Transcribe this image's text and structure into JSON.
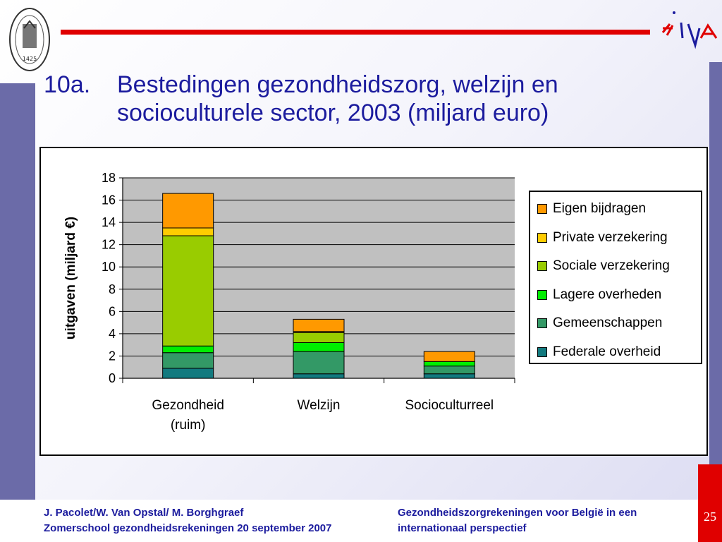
{
  "header": {
    "slide_number": "10a.",
    "title": "Bestedingen gezondheidszorg, welzijn en socioculturele sector, 2003 (miljard euro)",
    "seal_year": "1425",
    "logo_text": "HIVA"
  },
  "colors": {
    "accent_red": "#e00000",
    "title_blue": "#1c1c9e",
    "side_bar": "#6b6ba8",
    "plot_bg": "#c0c0c0"
  },
  "chart_data": {
    "type": "bar",
    "stacked": true,
    "title": "",
    "xlabel": "",
    "ylabel": "uitgaven (miljard €)",
    "ylim": [
      0,
      18
    ],
    "yticks": [
      "0",
      "2",
      "4",
      "6",
      "8",
      "10",
      "12",
      "14",
      "16",
      "18"
    ],
    "grid": true,
    "legend_position": "right",
    "categories": [
      [
        "Gezondheid",
        "(ruim)"
      ],
      [
        "Welzijn"
      ],
      [
        "Socioculturreel"
      ]
    ],
    "series": [
      {
        "name": "Federale overheid",
        "color": "#127a7f",
        "values": [
          0.9,
          0.4,
          0.4
        ]
      },
      {
        "name": "Gemeenschappen",
        "color": "#339966",
        "values": [
          1.4,
          2.0,
          0.7
        ]
      },
      {
        "name": "Lagere overheden",
        "color": "#00ee00",
        "values": [
          0.6,
          0.8,
          0.4
        ]
      },
      {
        "name": "Sociale verzekering",
        "color": "#99cc00",
        "values": [
          9.9,
          0.9,
          0.0
        ]
      },
      {
        "name": "Private verzekering",
        "color": "#ffcc00",
        "values": [
          0.7,
          0.1,
          0.0
        ]
      },
      {
        "name": "Eigen bijdragen",
        "color": "#ff9900",
        "values": [
          3.1,
          1.1,
          0.9
        ]
      }
    ]
  },
  "footer": {
    "left_line1": "J. Pacolet/W. Van Opstal/ M. Borghgraef",
    "left_line2": "Zomerschool gezondheidsrekeningen 20 september 2007",
    "right_line1": "Gezondheidszorgrekeningen voor België in een",
    "right_line2": "internationaal perspectief",
    "page_number": "25"
  }
}
